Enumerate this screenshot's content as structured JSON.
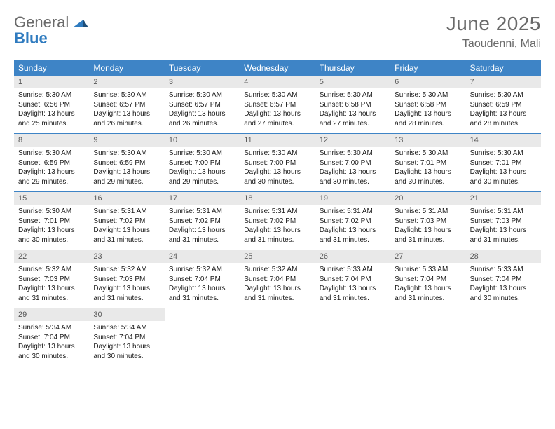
{
  "logo": {
    "line1": "General",
    "line2": "Blue"
  },
  "title": "June 2025",
  "location": "Taoudenni, Mali",
  "colors": {
    "header_bg": "#3e84c6",
    "header_text": "#ffffff",
    "daynum_bg": "#e9e9e9",
    "daynum_text": "#595959",
    "week_border": "#3e84c6",
    "title_text": "#6a6a6a",
    "logo_gray": "#6a6a6a",
    "logo_blue": "#2f7bbf",
    "page_bg": "#ffffff"
  },
  "typography": {
    "title_fontsize": 28,
    "location_fontsize": 16,
    "dow_fontsize": 12,
    "daynum_fontsize": 11,
    "body_fontsize": 10
  },
  "days_of_week": [
    "Sunday",
    "Monday",
    "Tuesday",
    "Wednesday",
    "Thursday",
    "Friday",
    "Saturday"
  ],
  "weeks": [
    [
      {
        "n": "1",
        "sr": "Sunrise: 5:30 AM",
        "ss": "Sunset: 6:56 PM",
        "dl": "Daylight: 13 hours and 25 minutes."
      },
      {
        "n": "2",
        "sr": "Sunrise: 5:30 AM",
        "ss": "Sunset: 6:57 PM",
        "dl": "Daylight: 13 hours and 26 minutes."
      },
      {
        "n": "3",
        "sr": "Sunrise: 5:30 AM",
        "ss": "Sunset: 6:57 PM",
        "dl": "Daylight: 13 hours and 26 minutes."
      },
      {
        "n": "4",
        "sr": "Sunrise: 5:30 AM",
        "ss": "Sunset: 6:57 PM",
        "dl": "Daylight: 13 hours and 27 minutes."
      },
      {
        "n": "5",
        "sr": "Sunrise: 5:30 AM",
        "ss": "Sunset: 6:58 PM",
        "dl": "Daylight: 13 hours and 27 minutes."
      },
      {
        "n": "6",
        "sr": "Sunrise: 5:30 AM",
        "ss": "Sunset: 6:58 PM",
        "dl": "Daylight: 13 hours and 28 minutes."
      },
      {
        "n": "7",
        "sr": "Sunrise: 5:30 AM",
        "ss": "Sunset: 6:59 PM",
        "dl": "Daylight: 13 hours and 28 minutes."
      }
    ],
    [
      {
        "n": "8",
        "sr": "Sunrise: 5:30 AM",
        "ss": "Sunset: 6:59 PM",
        "dl": "Daylight: 13 hours and 29 minutes."
      },
      {
        "n": "9",
        "sr": "Sunrise: 5:30 AM",
        "ss": "Sunset: 6:59 PM",
        "dl": "Daylight: 13 hours and 29 minutes."
      },
      {
        "n": "10",
        "sr": "Sunrise: 5:30 AM",
        "ss": "Sunset: 7:00 PM",
        "dl": "Daylight: 13 hours and 29 minutes."
      },
      {
        "n": "11",
        "sr": "Sunrise: 5:30 AM",
        "ss": "Sunset: 7:00 PM",
        "dl": "Daylight: 13 hours and 30 minutes."
      },
      {
        "n": "12",
        "sr": "Sunrise: 5:30 AM",
        "ss": "Sunset: 7:00 PM",
        "dl": "Daylight: 13 hours and 30 minutes."
      },
      {
        "n": "13",
        "sr": "Sunrise: 5:30 AM",
        "ss": "Sunset: 7:01 PM",
        "dl": "Daylight: 13 hours and 30 minutes."
      },
      {
        "n": "14",
        "sr": "Sunrise: 5:30 AM",
        "ss": "Sunset: 7:01 PM",
        "dl": "Daylight: 13 hours and 30 minutes."
      }
    ],
    [
      {
        "n": "15",
        "sr": "Sunrise: 5:30 AM",
        "ss": "Sunset: 7:01 PM",
        "dl": "Daylight: 13 hours and 30 minutes."
      },
      {
        "n": "16",
        "sr": "Sunrise: 5:31 AM",
        "ss": "Sunset: 7:02 PM",
        "dl": "Daylight: 13 hours and 31 minutes."
      },
      {
        "n": "17",
        "sr": "Sunrise: 5:31 AM",
        "ss": "Sunset: 7:02 PM",
        "dl": "Daylight: 13 hours and 31 minutes."
      },
      {
        "n": "18",
        "sr": "Sunrise: 5:31 AM",
        "ss": "Sunset: 7:02 PM",
        "dl": "Daylight: 13 hours and 31 minutes."
      },
      {
        "n": "19",
        "sr": "Sunrise: 5:31 AM",
        "ss": "Sunset: 7:02 PM",
        "dl": "Daylight: 13 hours and 31 minutes."
      },
      {
        "n": "20",
        "sr": "Sunrise: 5:31 AM",
        "ss": "Sunset: 7:03 PM",
        "dl": "Daylight: 13 hours and 31 minutes."
      },
      {
        "n": "21",
        "sr": "Sunrise: 5:31 AM",
        "ss": "Sunset: 7:03 PM",
        "dl": "Daylight: 13 hours and 31 minutes."
      }
    ],
    [
      {
        "n": "22",
        "sr": "Sunrise: 5:32 AM",
        "ss": "Sunset: 7:03 PM",
        "dl": "Daylight: 13 hours and 31 minutes."
      },
      {
        "n": "23",
        "sr": "Sunrise: 5:32 AM",
        "ss": "Sunset: 7:03 PM",
        "dl": "Daylight: 13 hours and 31 minutes."
      },
      {
        "n": "24",
        "sr": "Sunrise: 5:32 AM",
        "ss": "Sunset: 7:04 PM",
        "dl": "Daylight: 13 hours and 31 minutes."
      },
      {
        "n": "25",
        "sr": "Sunrise: 5:32 AM",
        "ss": "Sunset: 7:04 PM",
        "dl": "Daylight: 13 hours and 31 minutes."
      },
      {
        "n": "26",
        "sr": "Sunrise: 5:33 AM",
        "ss": "Sunset: 7:04 PM",
        "dl": "Daylight: 13 hours and 31 minutes."
      },
      {
        "n": "27",
        "sr": "Sunrise: 5:33 AM",
        "ss": "Sunset: 7:04 PM",
        "dl": "Daylight: 13 hours and 31 minutes."
      },
      {
        "n": "28",
        "sr": "Sunrise: 5:33 AM",
        "ss": "Sunset: 7:04 PM",
        "dl": "Daylight: 13 hours and 30 minutes."
      }
    ],
    [
      {
        "n": "29",
        "sr": "Sunrise: 5:34 AM",
        "ss": "Sunset: 7:04 PM",
        "dl": "Daylight: 13 hours and 30 minutes."
      },
      {
        "n": "30",
        "sr": "Sunrise: 5:34 AM",
        "ss": "Sunset: 7:04 PM",
        "dl": "Daylight: 13 hours and 30 minutes."
      },
      null,
      null,
      null,
      null,
      null
    ]
  ]
}
